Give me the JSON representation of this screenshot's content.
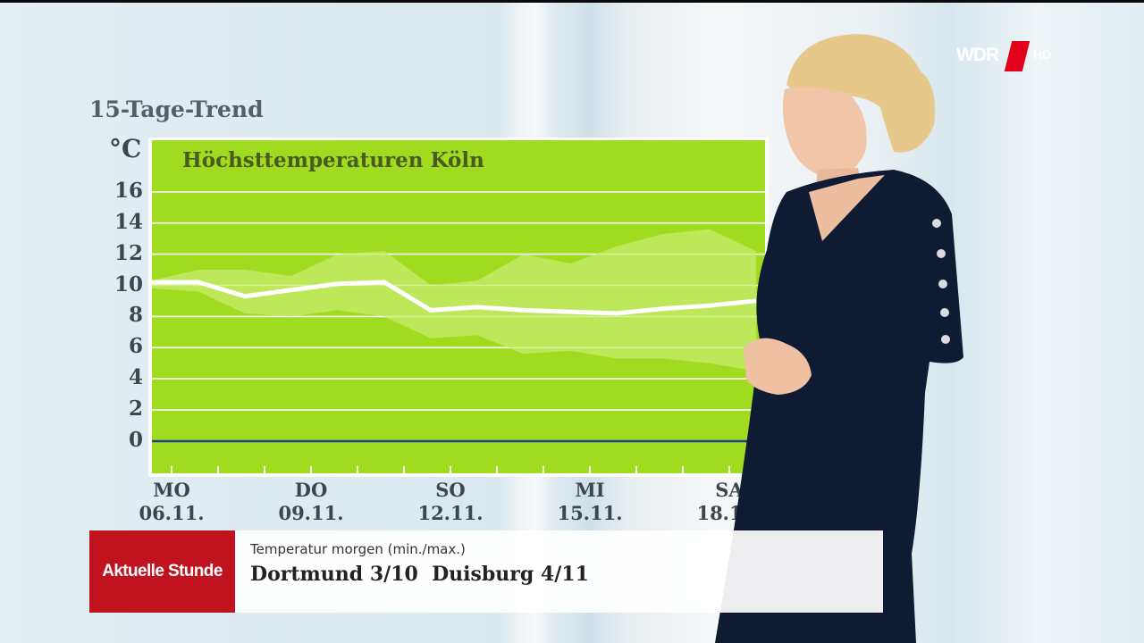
{
  "broadcast": {
    "logo_text": "WDR",
    "logo_suffix": "HD",
    "brand_color": "#e3001b"
  },
  "trend_title": "15-Tage-Trend",
  "chart_data": {
    "type": "line",
    "title": "Höchsttemperaturen Köln",
    "ylabel": "°C",
    "ylim": [
      -2,
      17.5
    ],
    "yticks": [
      0,
      2,
      4,
      6,
      8,
      10,
      12,
      14,
      16
    ],
    "x": [
      0,
      1,
      2,
      3,
      4,
      5,
      6,
      7,
      8,
      9,
      10,
      11,
      12,
      13
    ],
    "x_tick_labels": [
      {
        "x": 0,
        "day": "MO",
        "date": "06.11."
      },
      {
        "x": 3,
        "day": "DO",
        "date": "09.11."
      },
      {
        "x": 6,
        "day": "SO",
        "date": "12.11."
      },
      {
        "x": 9,
        "day": "MI",
        "date": "15.11."
      },
      {
        "x": 12,
        "day": "SA",
        "date": "18.11."
      }
    ],
    "series": [
      {
        "role": "trend",
        "values": [
          10.2,
          10.2,
          9.3,
          9.7,
          10.1,
          10.2,
          8.4,
          8.6,
          8.4,
          8.3,
          8.2,
          8.5,
          8.7,
          9.0
        ]
      },
      {
        "role": "band_inner_upper",
        "values": [
          10.3,
          11.0,
          11.0,
          10.6,
          12.0,
          12.2,
          10.0,
          10.3,
          12.0,
          11.4,
          12.5,
          13.3,
          13.6,
          12.2
        ]
      },
      {
        "role": "band_inner_lower",
        "values": [
          9.8,
          9.6,
          8.2,
          8.0,
          8.4,
          8.0,
          6.6,
          6.8,
          5.6,
          5.8,
          5.3,
          5.3,
          5.0,
          4.5
        ]
      }
    ],
    "colors": {
      "background": "#9fdc1f",
      "band": "#c6ec6f",
      "trend_line": "#ffffff",
      "zero_line": "#1f3f8f",
      "grid": "#ffffff"
    },
    "grid": true
  },
  "lower_third": {
    "brand": "Aktuelle Stunde",
    "subtitle": "Temperatur morgen (min./max.)",
    "main": "Dortmund 3/10  Duisburg 4/11"
  }
}
